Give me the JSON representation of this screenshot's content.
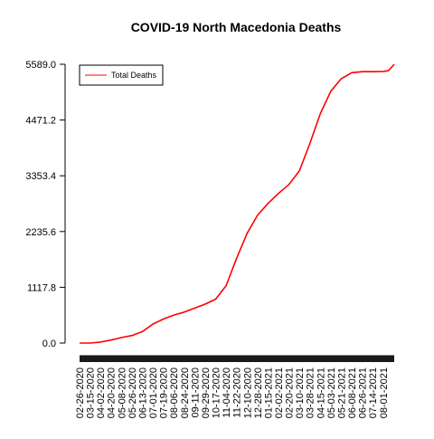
{
  "chart_data": {
    "type": "line",
    "title": "COVID-19 North Macedonia Deaths",
    "xlabel": "",
    "ylabel": "",
    "ylim": [
      0.0,
      5589.0
    ],
    "yticks": [
      "0.0",
      "1117.8",
      "2235.6",
      "3353.4",
      "4471.2",
      "5589.0"
    ],
    "xticks": [
      "02-26-2020",
      "03-15-2020",
      "04-02-2020",
      "04-20-2020",
      "05-08-2020",
      "05-26-2020",
      "06-13-2020",
      "07-01-2020",
      "07-19-2020",
      "08-06-2020",
      "08-24-2020",
      "09-11-2020",
      "09-29-2020",
      "10-17-2020",
      "11-04-2020",
      "11-22-2020",
      "12-10-2020",
      "12-28-2020",
      "01-15-2021",
      "02-02-2021",
      "02-20-2021",
      "03-10-2021",
      "03-28-2021",
      "04-15-2021",
      "05-03-2021",
      "05-21-2021",
      "06-08-2021",
      "06-26-2021",
      "07-14-2021",
      "08-01-2021"
    ],
    "x_start": "02-26-2020",
    "x_end": "08-20-2021",
    "grid": false,
    "legend_position": "top-left",
    "series": [
      {
        "name": "Total Deaths",
        "color": "#ff0000",
        "x": [
          "02-26-2020",
          "03-15-2020",
          "04-02-2020",
          "04-20-2020",
          "05-08-2020",
          "05-26-2020",
          "06-13-2020",
          "07-01-2020",
          "07-19-2020",
          "08-06-2020",
          "08-24-2020",
          "09-11-2020",
          "09-29-2020",
          "10-17-2020",
          "11-04-2020",
          "11-22-2020",
          "12-10-2020",
          "12-28-2020",
          "01-15-2021",
          "02-02-2021",
          "02-20-2021",
          "03-10-2021",
          "03-28-2021",
          "04-15-2021",
          "05-03-2021",
          "05-21-2021",
          "06-08-2021",
          "06-26-2021",
          "07-14-2021",
          "08-01-2021",
          "08-10-2021",
          "08-20-2021"
        ],
        "values": [
          0,
          0,
          20,
          60,
          110,
          150,
          230,
          380,
          480,
          560,
          620,
          700,
          780,
          880,
          1150,
          1700,
          2200,
          2560,
          2800,
          3000,
          3180,
          3450,
          4000,
          4600,
          5050,
          5300,
          5420,
          5440,
          5440,
          5445,
          5460,
          5589
        ]
      }
    ]
  }
}
